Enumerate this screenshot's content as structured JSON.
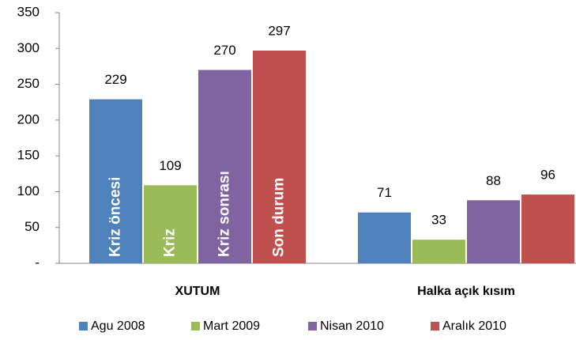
{
  "chart_data": {
    "type": "bar",
    "categories": [
      "XUTUM",
      "Halka açık kısım"
    ],
    "series": [
      {
        "name": "Agu 2008",
        "color": "#4f81bd",
        "values": [
          229,
          71
        ]
      },
      {
        "name": "Mart 2009",
        "color": "#9bbb59",
        "values": [
          109,
          33
        ]
      },
      {
        "name": "Nisan 2010",
        "color": "#8064a2",
        "values": [
          270,
          88
        ]
      },
      {
        "name": "Aralık 2010",
        "color": "#c0504d",
        "values": [
          297,
          96
        ]
      }
    ],
    "annotations": [
      "Kriz öncesi",
      "Kriz",
      "Kriz sonrası",
      "Son durum"
    ],
    "ylim": [
      0,
      350
    ],
    "yticks": [
      {
        "value": 0,
        "label": "-"
      },
      50,
      100,
      150,
      200,
      250,
      300,
      350
    ],
    "legend": "bottom"
  }
}
